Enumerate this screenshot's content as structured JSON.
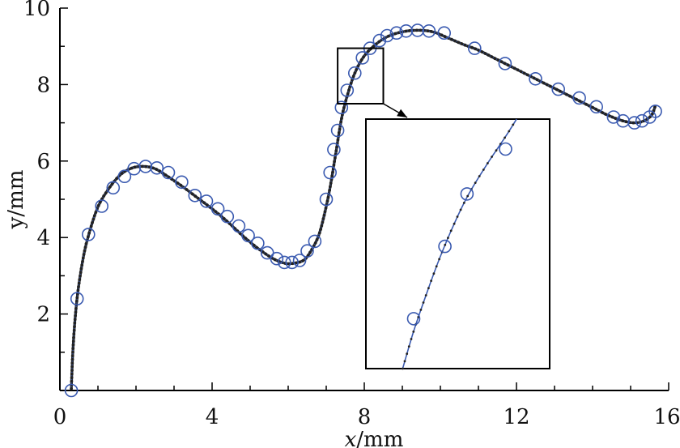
{
  "chart_data": {
    "type": "line",
    "xlabel_var": "x",
    "xlabel_unit": "/mm",
    "ylabel": "y/mm",
    "xlim": [
      0,
      16
    ],
    "ylim": [
      0,
      10
    ],
    "x_ticks": [
      "0",
      "4",
      "8",
      "12",
      "16"
    ],
    "y_ticks": [
      "2",
      "4",
      "6",
      "8",
      "10"
    ],
    "grid": false,
    "series": [
      {
        "style": "dense dotted black curve",
        "points": [
          [
            0.3,
            0.05
          ],
          [
            0.35,
            1.2
          ],
          [
            0.45,
            2.4
          ],
          [
            0.6,
            3.4
          ],
          [
            0.75,
            4.05
          ],
          [
            1.0,
            4.8
          ],
          [
            1.3,
            5.3
          ],
          [
            1.6,
            5.65
          ],
          [
            1.9,
            5.82
          ],
          [
            2.2,
            5.86
          ],
          [
            2.5,
            5.8
          ],
          [
            2.8,
            5.62
          ],
          [
            3.2,
            5.35
          ],
          [
            3.6,
            5.05
          ],
          [
            4.0,
            4.75
          ],
          [
            4.4,
            4.42
          ],
          [
            4.8,
            4.05
          ],
          [
            5.2,
            3.72
          ],
          [
            5.6,
            3.45
          ],
          [
            5.9,
            3.33
          ],
          [
            6.1,
            3.32
          ],
          [
            6.4,
            3.4
          ],
          [
            6.6,
            3.65
          ],
          [
            6.8,
            4.05
          ],
          [
            6.95,
            4.6
          ],
          [
            7.1,
            5.3
          ],
          [
            7.25,
            6.2
          ],
          [
            7.4,
            7.1
          ],
          [
            7.55,
            7.7
          ],
          [
            7.75,
            8.3
          ],
          [
            8.0,
            8.75
          ],
          [
            8.3,
            9.05
          ],
          [
            8.6,
            9.25
          ],
          [
            9.0,
            9.38
          ],
          [
            9.4,
            9.42
          ],
          [
            9.8,
            9.38
          ],
          [
            10.2,
            9.22
          ],
          [
            10.6,
            9.05
          ],
          [
            11.0,
            8.9
          ],
          [
            11.5,
            8.65
          ],
          [
            12.0,
            8.4
          ],
          [
            12.5,
            8.15
          ],
          [
            13.0,
            7.9
          ],
          [
            13.5,
            7.65
          ],
          [
            14.0,
            7.4
          ],
          [
            14.4,
            7.2
          ],
          [
            14.8,
            7.05
          ],
          [
            15.1,
            7.0
          ],
          [
            15.35,
            7.05
          ],
          [
            15.55,
            7.2
          ],
          [
            15.65,
            7.45
          ]
        ]
      },
      {
        "style": "blue circle markers",
        "points": [
          [
            0.3,
            0.0
          ],
          [
            0.45,
            2.4
          ],
          [
            0.75,
            4.08
          ],
          [
            1.1,
            4.82
          ],
          [
            1.4,
            5.3
          ],
          [
            1.7,
            5.6
          ],
          [
            1.95,
            5.8
          ],
          [
            2.25,
            5.86
          ],
          [
            2.55,
            5.82
          ],
          [
            2.85,
            5.7
          ],
          [
            3.2,
            5.45
          ],
          [
            3.55,
            5.1
          ],
          [
            3.85,
            4.95
          ],
          [
            4.15,
            4.75
          ],
          [
            4.4,
            4.55
          ],
          [
            4.7,
            4.3
          ],
          [
            4.95,
            4.05
          ],
          [
            5.2,
            3.85
          ],
          [
            5.45,
            3.6
          ],
          [
            5.7,
            3.45
          ],
          [
            5.9,
            3.35
          ],
          [
            6.1,
            3.35
          ],
          [
            6.3,
            3.4
          ],
          [
            6.5,
            3.65
          ],
          [
            6.7,
            3.9
          ],
          [
            7.0,
            5.0
          ],
          [
            7.1,
            5.7
          ],
          [
            7.2,
            6.3
          ],
          [
            7.3,
            6.8
          ],
          [
            7.4,
            7.4
          ],
          [
            7.55,
            7.85
          ],
          [
            7.75,
            8.3
          ],
          [
            7.95,
            8.7
          ],
          [
            8.15,
            8.95
          ],
          [
            8.4,
            9.15
          ],
          [
            8.6,
            9.28
          ],
          [
            8.85,
            9.35
          ],
          [
            9.1,
            9.4
          ],
          [
            9.4,
            9.42
          ],
          [
            9.7,
            9.4
          ],
          [
            10.1,
            9.35
          ],
          [
            10.9,
            8.95
          ],
          [
            11.7,
            8.55
          ],
          [
            12.5,
            8.15
          ],
          [
            13.1,
            7.88
          ],
          [
            13.65,
            7.65
          ],
          [
            14.1,
            7.42
          ],
          [
            14.55,
            7.15
          ],
          [
            14.8,
            7.05
          ],
          [
            15.1,
            7.0
          ],
          [
            15.3,
            7.05
          ],
          [
            15.5,
            7.15
          ],
          [
            15.65,
            7.3
          ]
        ]
      }
    ],
    "zoom_region": {
      "xlim": [
        7.3,
        8.5
      ],
      "ylim": [
        7.5,
        8.95
      ]
    },
    "inset_curve": [
      [
        0.2,
        0.0
      ],
      [
        0.26,
        0.15
      ],
      [
        0.33,
        0.3
      ],
      [
        0.4,
        0.44
      ],
      [
        0.48,
        0.58
      ],
      [
        0.56,
        0.7
      ],
      [
        0.66,
        0.82
      ],
      [
        0.76,
        0.93
      ],
      [
        0.82,
        1.0
      ]
    ],
    "inset_markers": [
      [
        0.26,
        0.2
      ],
      [
        0.43,
        0.49
      ],
      [
        0.55,
        0.7
      ],
      [
        0.76,
        0.88
      ]
    ],
    "colors": {
      "line": "#3a5ab0",
      "markers": "#3a5ab0",
      "dots": "#222222",
      "axes": "#000000"
    }
  }
}
